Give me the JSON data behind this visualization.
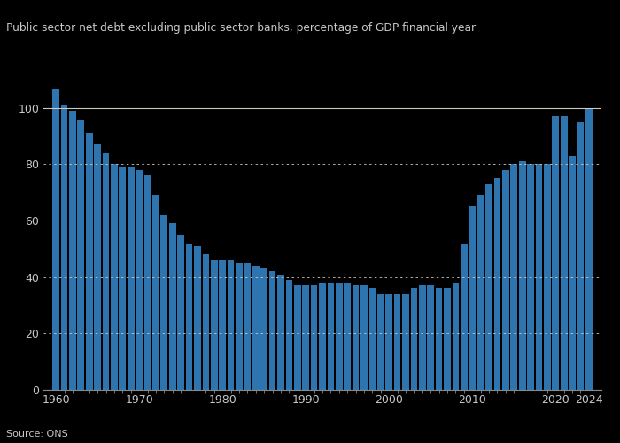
{
  "title": "Public sector net debt excluding public sector banks, percentage of GDP financial year",
  "source": "Source: ONS",
  "bar_color": "#2e75b0",
  "background_color": "#000000",
  "plot_bg_color": "#000000",
  "text_color": "#c8c8c8",
  "ylim": [
    0,
    110
  ],
  "yticks": [
    0,
    20,
    40,
    60,
    80,
    100
  ],
  "years": [
    1960,
    1961,
    1962,
    1963,
    1964,
    1965,
    1966,
    1967,
    1968,
    1969,
    1970,
    1971,
    1972,
    1973,
    1974,
    1975,
    1976,
    1977,
    1978,
    1979,
    1980,
    1981,
    1982,
    1983,
    1984,
    1985,
    1986,
    1987,
    1988,
    1989,
    1990,
    1991,
    1992,
    1993,
    1994,
    1995,
    1996,
    1997,
    1998,
    1999,
    2000,
    2001,
    2002,
    2003,
    2004,
    2005,
    2006,
    2007,
    2008,
    2009,
    2010,
    2011,
    2012,
    2013,
    2014,
    2015,
    2016,
    2017,
    2018,
    2019,
    2020,
    2021,
    2022,
    2023,
    2024
  ],
  "values": [
    107,
    101,
    99,
    96,
    91,
    87,
    84,
    80,
    79,
    79,
    78,
    76,
    69,
    62,
    59,
    55,
    52,
    51,
    48,
    46,
    46,
    46,
    45,
    45,
    44,
    43,
    42,
    41,
    39,
    37,
    37,
    37,
    38,
    38,
    38,
    38,
    37,
    37,
    36,
    34,
    34,
    34,
    34,
    36,
    37,
    37,
    36,
    36,
    38,
    52,
    65,
    69,
    73,
    75,
    78,
    80,
    81,
    80,
    80,
    80,
    97,
    97,
    83,
    95,
    100
  ]
}
